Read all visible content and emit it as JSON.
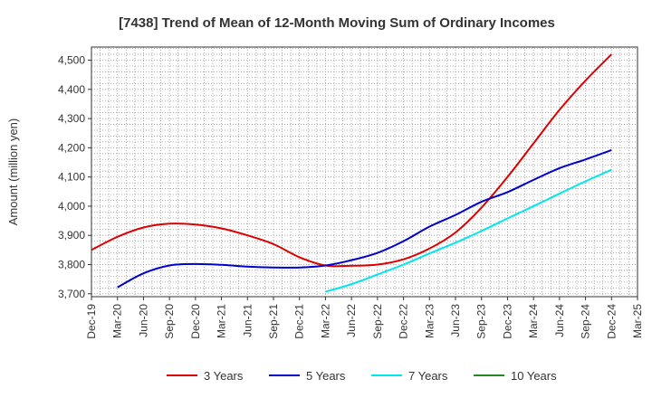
{
  "chart_data": {
    "type": "line",
    "title": "[7438]  Trend of Mean of 12-Month Moving Sum of Ordinary Incomes",
    "xlabel": "",
    "ylabel": "Amount (million yen)",
    "ylim": [
      3690,
      4545
    ],
    "yticks": [
      3700,
      3800,
      3900,
      4000,
      4100,
      4200,
      4300,
      4400,
      4500
    ],
    "ytick_labels": [
      "3,700",
      "3,800",
      "3,900",
      "4,000",
      "4,100",
      "4,200",
      "4,300",
      "4,400",
      "4,500"
    ],
    "categories": [
      "Dec-19",
      "Mar-20",
      "Jun-20",
      "Sep-20",
      "Dec-20",
      "Mar-21",
      "Jun-21",
      "Sep-21",
      "Dec-21",
      "Mar-22",
      "Jun-22",
      "Sep-22",
      "Dec-22",
      "Mar-23",
      "Jun-23",
      "Sep-23",
      "Dec-23",
      "Mar-24",
      "Jun-24",
      "Sep-24",
      "Dec-24",
      "Mar-25"
    ],
    "grid": true,
    "series": [
      {
        "name": "3 Years",
        "color": "#dd0000",
        "values": [
          3850,
          3895,
          3927,
          3940,
          3937,
          3924,
          3900,
          3870,
          3825,
          3797,
          3796,
          3800,
          3818,
          3855,
          3910,
          3995,
          4100,
          4215,
          4330,
          4430,
          4520,
          null
        ]
      },
      {
        "name": "5 Years",
        "color": "#0000cc",
        "values": [
          null,
          3722,
          3770,
          3797,
          3802,
          3799,
          3793,
          3790,
          3790,
          3797,
          3815,
          3840,
          3880,
          3930,
          3970,
          4015,
          4048,
          4090,
          4130,
          4160,
          4192,
          null
        ]
      },
      {
        "name": "7 Years",
        "color": "#00e5ee",
        "values": [
          null,
          null,
          null,
          null,
          null,
          null,
          null,
          null,
          null,
          3707,
          3733,
          3766,
          3800,
          3838,
          3875,
          3915,
          3958,
          4000,
          4043,
          4085,
          4125,
          null
        ]
      },
      {
        "name": "10 Years",
        "color": "#228B22",
        "values": [
          null,
          null,
          null,
          null,
          null,
          null,
          null,
          null,
          null,
          null,
          null,
          null,
          null,
          null,
          null,
          null,
          null,
          null,
          null,
          null,
          null,
          null
        ]
      }
    ]
  }
}
